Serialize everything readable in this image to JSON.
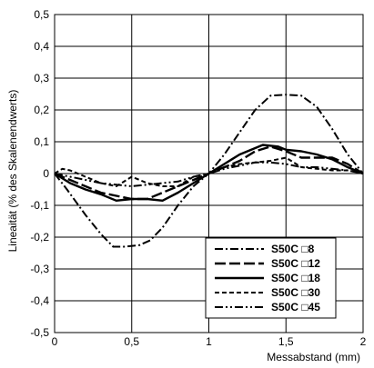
{
  "chart_data": {
    "type": "line",
    "title": "",
    "xlabel": "Messabstand (mm)",
    "ylabel": "Lineaität (% des Skalenendwerts)",
    "xlim": [
      0,
      2
    ],
    "ylim": [
      -0.5,
      0.5
    ],
    "grid": true,
    "legend_position": "bottom-right",
    "x_ticks": [
      {
        "value": 0,
        "label": "0"
      },
      {
        "value": 0.5,
        "label": "0,5"
      },
      {
        "value": 1,
        "label": "1"
      },
      {
        "value": 1.5,
        "label": "1,5"
      },
      {
        "value": 2,
        "label": "2"
      }
    ],
    "y_ticks": [
      {
        "value": 0.5,
        "label": "0,5"
      },
      {
        "value": 0.4,
        "label": "0,4"
      },
      {
        "value": 0.3,
        "label": "0,3"
      },
      {
        "value": 0.2,
        "label": "0,2"
      },
      {
        "value": 0.1,
        "label": "0,1"
      },
      {
        "value": 0,
        "label": "0"
      },
      {
        "value": -0.1,
        "label": "-0,1"
      },
      {
        "value": -0.2,
        "label": "-0,2"
      },
      {
        "value": -0.3,
        "label": "-0,3"
      },
      {
        "value": -0.4,
        "label": "-0,4"
      },
      {
        "value": -0.5,
        "label": "-0,5"
      }
    ],
    "series": [
      {
        "name": "S50C □8",
        "dash": "dashdot",
        "stroke_width": 2,
        "x": [
          0,
          0.08,
          0.2,
          0.3,
          0.38,
          0.45,
          0.55,
          0.62,
          0.7,
          0.8,
          0.9,
          1.0,
          1.1,
          1.2,
          1.3,
          1.4,
          1.5,
          1.6,
          1.7,
          1.8,
          1.9,
          2.0
        ],
        "y": [
          0,
          -0.05,
          -0.13,
          -0.19,
          -0.23,
          -0.23,
          -0.225,
          -0.21,
          -0.17,
          -0.1,
          -0.04,
          0,
          0.06,
          0.13,
          0.2,
          0.245,
          0.248,
          0.245,
          0.21,
          0.14,
          0.06,
          0
        ]
      },
      {
        "name": "S50C □12",
        "dash": "longdash",
        "stroke_width": 2.4,
        "x": [
          0,
          0.1,
          0.2,
          0.3,
          0.4,
          0.5,
          0.6,
          0.7,
          0.8,
          0.9,
          1.0,
          1.1,
          1.2,
          1.3,
          1.4,
          1.5,
          1.6,
          1.7,
          1.8,
          1.9,
          2.0
        ],
        "y": [
          0,
          -0.02,
          -0.04,
          -0.06,
          -0.07,
          -0.08,
          -0.08,
          -0.06,
          -0.04,
          -0.02,
          0,
          0.02,
          0.04,
          0.07,
          0.085,
          0.07,
          0.05,
          0.05,
          0.05,
          0.03,
          0
        ]
      },
      {
        "name": "S50C □18",
        "dash": "solid",
        "stroke_width": 2.4,
        "x": [
          0,
          0.1,
          0.2,
          0.3,
          0.4,
          0.5,
          0.6,
          0.7,
          0.8,
          0.9,
          1.0,
          1.1,
          1.2,
          1.3,
          1.35,
          1.45,
          1.5,
          1.6,
          1.7,
          1.8,
          1.9,
          2.0
        ],
        "y": [
          0,
          -0.03,
          -0.05,
          -0.065,
          -0.085,
          -0.08,
          -0.08,
          -0.085,
          -0.06,
          -0.03,
          0,
          0.03,
          0.06,
          0.08,
          0.09,
          0.085,
          0.075,
          0.07,
          0.06,
          0.045,
          0.02,
          0
        ]
      },
      {
        "name": "S50C □30",
        "dash": "shortdash",
        "stroke_width": 2,
        "x": [
          0,
          0.05,
          0.1,
          0.2,
          0.3,
          0.4,
          0.5,
          0.6,
          0.7,
          0.8,
          0.9,
          1.0,
          1.1,
          1.2,
          1.3,
          1.4,
          1.5,
          1.6,
          1.7,
          1.8,
          1.9,
          2.0
        ],
        "y": [
          0,
          0.015,
          0.01,
          -0.01,
          -0.03,
          -0.04,
          -0.01,
          -0.03,
          -0.04,
          -0.04,
          -0.01,
          0,
          0.02,
          0.03,
          0.035,
          0.04,
          0.05,
          0.02,
          0.015,
          0.01,
          0.01,
          0
        ]
      },
      {
        "name": "S50C □45",
        "dash": "dashdotdot",
        "stroke_width": 2,
        "x": [
          0,
          0.1,
          0.2,
          0.3,
          0.4,
          0.5,
          0.6,
          0.7,
          0.8,
          0.9,
          1.0,
          1.1,
          1.2,
          1.3,
          1.4,
          1.5,
          1.6,
          1.7,
          1.8,
          1.9,
          2.0
        ],
        "y": [
          0,
          -0.01,
          -0.02,
          -0.03,
          -0.035,
          -0.04,
          -0.035,
          -0.03,
          -0.025,
          -0.01,
          0,
          0.015,
          0.025,
          0.035,
          0.035,
          0.03,
          0.02,
          0.02,
          0.015,
          0.01,
          0
        ]
      }
    ]
  }
}
